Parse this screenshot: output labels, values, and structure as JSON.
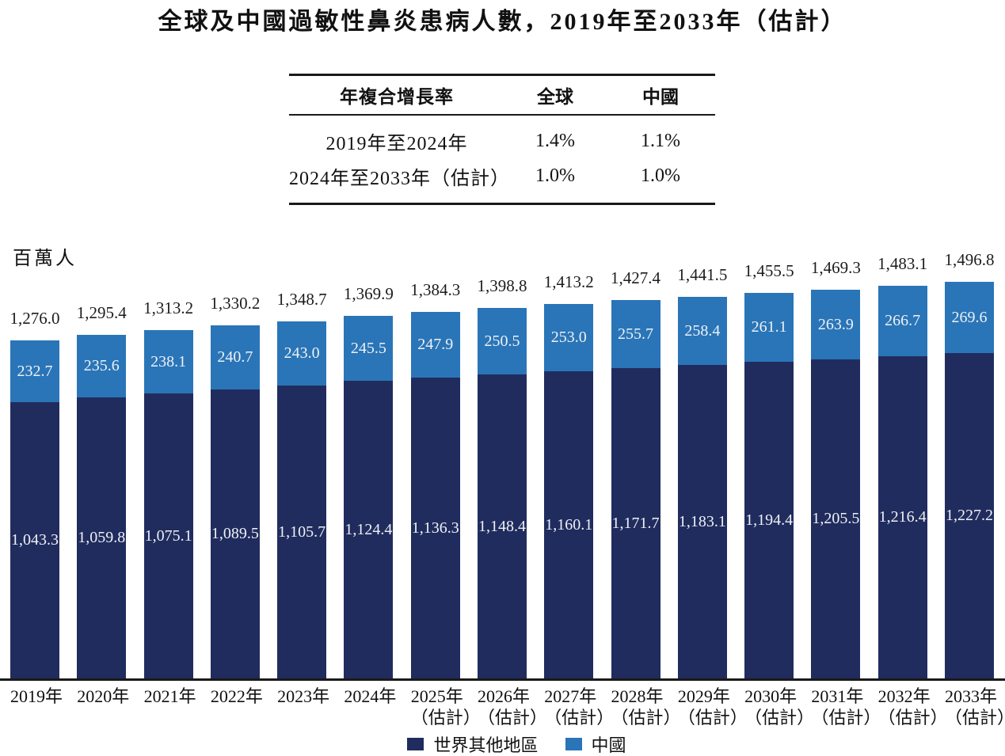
{
  "title": "全球及中國過敏性鼻炎患病人數，2019年至2033年（估計）",
  "cagr_table": {
    "headers": [
      "年複合增長率",
      "全球",
      "中國"
    ],
    "rows": [
      {
        "period": "2019年至2024年",
        "global": "1.4%",
        "china": "1.1%"
      },
      {
        "period": "2024年至2033年（估計）",
        "global": "1.0%",
        "china": "1.0%"
      }
    ]
  },
  "chart_data": {
    "type": "bar",
    "stacked": true,
    "title": "全球及中國過敏性鼻炎患病人數，2019年至2033年（估計）",
    "xlabel": "",
    "ylabel": "百萬人",
    "unit_label": "百萬人",
    "y_axis_ticks": "none",
    "ylim": [
      0,
      1560
    ],
    "legend_position": "bottom",
    "grid": false,
    "categories": [
      "2019年",
      "2020年",
      "2021年",
      "2022年",
      "2023年",
      "2024年",
      "2025年",
      "2026年",
      "2027年",
      "2028年",
      "2029年",
      "2030年",
      "2031年",
      "2032年",
      "2033年"
    ],
    "estimate_suffix": "（估計）",
    "estimate_from_index": 6,
    "series": [
      {
        "name": "世界其他地區",
        "color": "#212c5e",
        "values": [
          1043.3,
          1059.8,
          1075.1,
          1089.5,
          1105.7,
          1124.4,
          1136.3,
          1148.4,
          1160.1,
          1171.7,
          1183.1,
          1194.4,
          1205.5,
          1216.4,
          1227.2
        ]
      },
      {
        "name": "中國",
        "color": "#2a75b8",
        "values": [
          232.7,
          235.6,
          238.1,
          240.7,
          243.0,
          245.5,
          247.9,
          250.5,
          253.0,
          255.7,
          258.4,
          261.1,
          263.9,
          266.7,
          269.6
        ]
      }
    ],
    "totals": [
      1276.0,
      1295.4,
      1313.2,
      1330.2,
      1348.7,
      1369.9,
      1384.3,
      1398.8,
      1413.2,
      1427.4,
      1441.5,
      1455.5,
      1469.3,
      1483.1,
      1496.8
    ]
  },
  "colors": {
    "rest_of_world": "#212c5e",
    "china": "#2a75b8",
    "axis": "#1a1a1a",
    "bar_label_text": "#eef1f5"
  }
}
